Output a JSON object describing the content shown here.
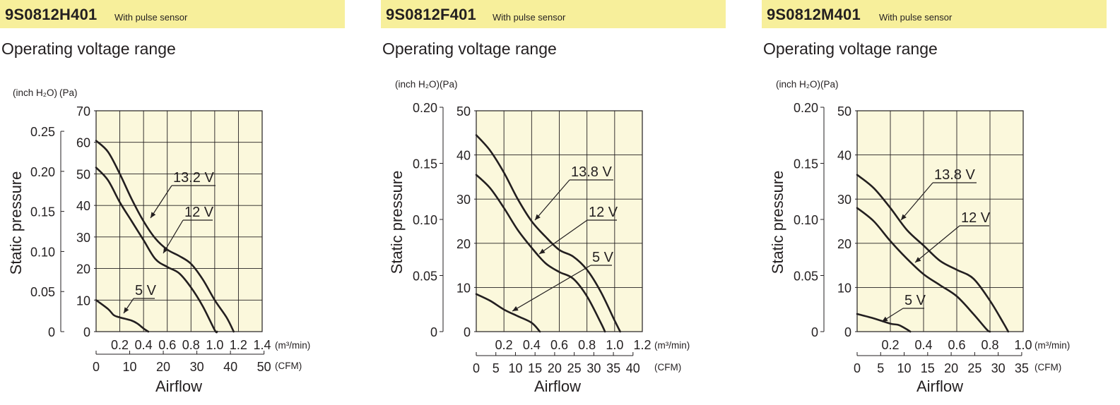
{
  "colors": {
    "title_bar": "#f7ef9b",
    "plot_bg": "#fbf8dc",
    "ink": "#231f20"
  },
  "panels": [
    {
      "model": "9S0812H401",
      "sensor": "With pulse sensor",
      "subtitle": "Operating voltage range"
    },
    {
      "model": "9S0812F401",
      "sensor": "With pulse sensor",
      "subtitle": "Operating voltage range"
    },
    {
      "model": "9S0812M401",
      "sensor": "With pulse sensor",
      "subtitle": "Operating voltage range"
    }
  ],
  "chart_data": [
    {
      "type": "line",
      "ylabel": "Static pressure",
      "xlabel": "Airflow",
      "y_unit_inch": "(inch H₂O)",
      "y_unit_pa": "(Pa)",
      "x_unit_m3": "(m³/min)",
      "x_unit_cfm": "(CFM)",
      "xlim_m3": [
        0,
        1.4
      ],
      "ylim_pa": [
        0,
        70
      ],
      "x_ticks_m3": [
        "0.2",
        "0.4",
        "0.6",
        "0.8",
        "1.0",
        "1.2",
        "1.4"
      ],
      "x_ticks_cfm": [
        "0",
        "10",
        "20",
        "30",
        "40",
        "50"
      ],
      "cfm_max": 50,
      "y_ticks_pa": [
        "0",
        "10",
        "20",
        "30",
        "40",
        "50",
        "60",
        "70"
      ],
      "y_ticks_inch": [
        "0",
        "0.05",
        "0.10",
        "0.15",
        "0.20",
        "0.25"
      ],
      "inch_max": 0.25,
      "grid": true,
      "series": [
        {
          "name": "13.2 V",
          "points": [
            [
              0,
              60.5
            ],
            [
              0.1,
              57
            ],
            [
              0.2,
              50
            ],
            [
              0.3,
              42
            ],
            [
              0.4,
              35
            ],
            [
              0.5,
              29.5
            ],
            [
              0.6,
              26
            ],
            [
              0.7,
              24
            ],
            [
              0.8,
              21.5
            ],
            [
              0.9,
              16.5
            ],
            [
              1.0,
              10
            ],
            [
              1.1,
              4.5
            ],
            [
              1.16,
              0
            ]
          ]
        },
        {
          "name": "12 V",
          "points": [
            [
              0,
              52
            ],
            [
              0.1,
              48
            ],
            [
              0.2,
              41
            ],
            [
              0.3,
              35
            ],
            [
              0.4,
              29
            ],
            [
              0.5,
              23
            ],
            [
              0.6,
              20.5
            ],
            [
              0.7,
              18.5
            ],
            [
              0.8,
              14
            ],
            [
              0.9,
              8
            ],
            [
              1.0,
              0.5
            ],
            [
              1.02,
              0
            ]
          ]
        },
        {
          "name": "5 V",
          "points": [
            [
              0,
              10
            ],
            [
              0.1,
              7.2
            ],
            [
              0.15,
              5.2
            ],
            [
              0.2,
              4.5
            ],
            [
              0.3,
              3.5
            ],
            [
              0.35,
              2.5
            ],
            [
              0.4,
              1
            ],
            [
              0.44,
              0
            ]
          ]
        }
      ]
    },
    {
      "type": "line",
      "ylabel": "Static pressure",
      "xlabel": "Airflow",
      "y_unit_inch": "(inch H₂O)",
      "y_unit_pa": "(Pa)",
      "x_unit_m3": "(m³/min)",
      "x_unit_cfm": "(CFM)",
      "xlim_m3": [
        0,
        1.2
      ],
      "ylim_pa": [
        0,
        50
      ],
      "x_ticks_m3": [
        "0.2",
        "0.4",
        "0.6",
        "0.8",
        "1.0",
        "1.2"
      ],
      "x_ticks_cfm": [
        "0",
        "5",
        "10",
        "15",
        "20",
        "25",
        "30",
        "35",
        "40"
      ],
      "cfm_max": 40,
      "y_ticks_pa": [
        "0",
        "10",
        "20",
        "30",
        "40",
        "50"
      ],
      "y_ticks_inch": [
        "0",
        "0.05",
        "0.10",
        "0.15",
        "0.20"
      ],
      "inch_max": 0.2,
      "grid": true,
      "series": [
        {
          "name": "13.8 V",
          "points": [
            [
              0,
              44.5
            ],
            [
              0.1,
              41
            ],
            [
              0.2,
              36
            ],
            [
              0.3,
              30
            ],
            [
              0.4,
              25
            ],
            [
              0.5,
              21.5
            ],
            [
              0.6,
              18.5
            ],
            [
              0.7,
              17
            ],
            [
              0.8,
              14
            ],
            [
              0.9,
              9
            ],
            [
              1.0,
              2.5
            ],
            [
              1.04,
              0
            ]
          ]
        },
        {
          "name": "12 V",
          "points": [
            [
              0,
              35.5
            ],
            [
              0.1,
              32.5
            ],
            [
              0.2,
              28
            ],
            [
              0.3,
              23
            ],
            [
              0.4,
              19
            ],
            [
              0.5,
              15.5
            ],
            [
              0.6,
              13.5
            ],
            [
              0.7,
              12
            ],
            [
              0.8,
              8
            ],
            [
              0.9,
              2
            ],
            [
              0.93,
              0
            ]
          ]
        },
        {
          "name": "5 V",
          "points": [
            [
              0,
              8.5
            ],
            [
              0.1,
              7
            ],
            [
              0.2,
              5
            ],
            [
              0.3,
              3.5
            ],
            [
              0.4,
              2
            ],
            [
              0.46,
              0
            ]
          ]
        }
      ]
    },
    {
      "type": "line",
      "ylabel": "Static pressure",
      "xlabel": "Airflow",
      "y_unit_inch": "(inch H₂O)",
      "y_unit_pa": "(Pa)",
      "x_unit_m3": "(m³/min)",
      "x_unit_cfm": "(CFM)",
      "xlim_m3": [
        0,
        1.0
      ],
      "ylim_pa": [
        0,
        50
      ],
      "x_ticks_m3": [
        "0.2",
        "0.4",
        "0.6",
        "0.8",
        "1.0"
      ],
      "x_ticks_cfm": [
        "0",
        "5",
        "10",
        "15",
        "20",
        "25",
        "30",
        "35"
      ],
      "cfm_max": 35,
      "y_ticks_pa": [
        "0",
        "10",
        "20",
        "30",
        "40",
        "50"
      ],
      "y_ticks_inch": [
        "0",
        "0.05",
        "0.10",
        "0.15",
        "0.20"
      ],
      "inch_max": 0.2,
      "grid": true,
      "series": [
        {
          "name": "13.8 V",
          "points": [
            [
              0,
              35.5
            ],
            [
              0.1,
              32.5
            ],
            [
              0.2,
              28
            ],
            [
              0.3,
              23
            ],
            [
              0.4,
              19.5
            ],
            [
              0.5,
              16
            ],
            [
              0.6,
              14
            ],
            [
              0.7,
              12
            ],
            [
              0.8,
              7
            ],
            [
              0.88,
              2
            ],
            [
              0.91,
              0
            ]
          ]
        },
        {
          "name": "12 V",
          "points": [
            [
              0,
              28
            ],
            [
              0.1,
              25
            ],
            [
              0.2,
              20.5
            ],
            [
              0.3,
              16.5
            ],
            [
              0.4,
              13
            ],
            [
              0.5,
              10.5
            ],
            [
              0.6,
              8
            ],
            [
              0.7,
              4
            ],
            [
              0.78,
              0.5
            ],
            [
              0.8,
              0
            ]
          ]
        },
        {
          "name": "5 V",
          "points": [
            [
              0,
              4
            ],
            [
              0.1,
              3
            ],
            [
              0.2,
              1.8
            ],
            [
              0.25,
              1.5
            ],
            [
              0.3,
              0.5
            ],
            [
              0.32,
              0
            ]
          ]
        }
      ]
    }
  ]
}
